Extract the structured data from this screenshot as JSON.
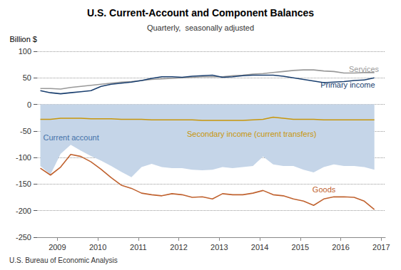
{
  "chart_data": {
    "type": "line",
    "title": "U.S. Current-Account and Component Balances",
    "subtitle": "Quarterly,  seasonally adjusted",
    "ylabel": "Billion $",
    "source": "U.S. Bureau of Economic Analysis",
    "xlim": [
      2008.5,
      2017.1
    ],
    "xticks": [
      2009,
      2010,
      2011,
      2012,
      2013,
      2014,
      2015,
      2016,
      2017
    ],
    "ylim": [
      -250,
      100
    ],
    "yticks": [
      -250,
      -200,
      -150,
      -100,
      -50,
      0,
      50,
      100
    ],
    "grid": true,
    "x": [
      2008.58,
      2008.83,
      2009.08,
      2009.33,
      2009.58,
      2009.83,
      2010.08,
      2010.33,
      2010.58,
      2010.83,
      2011.08,
      2011.33,
      2011.58,
      2011.83,
      2012.08,
      2012.33,
      2012.58,
      2012.83,
      2013.08,
      2013.33,
      2013.58,
      2013.83,
      2014.08,
      2014.33,
      2014.58,
      2014.83,
      2015.08,
      2015.33,
      2015.58,
      2015.83,
      2016.08,
      2016.33,
      2016.58,
      2016.83
    ],
    "series": [
      {
        "name": "Current account",
        "type": "area",
        "color": "#c5d5e8",
        "values": [
          -116,
          -132,
          -93,
          -76,
          -87,
          -97,
          -106,
          -116,
          -127,
          -137,
          -118,
          -112,
          -118,
          -120,
          -120,
          -123,
          -124,
          -123,
          -118,
          -120,
          -118,
          -116,
          -98,
          -113,
          -116,
          -116,
          -123,
          -128,
          -118,
          -113,
          -116,
          -116,
          -118,
          -123
        ]
      },
      {
        "name": "Services",
        "type": "line",
        "color": "#999999",
        "values": [
          30,
          30,
          29,
          32,
          34,
          36,
          38,
          40,
          42,
          43,
          45,
          47,
          48,
          49,
          50,
          51,
          52,
          52,
          52,
          54,
          55,
          57,
          58,
          60,
          62,
          64,
          65,
          65,
          63,
          62,
          59,
          59,
          60,
          60
        ]
      },
      {
        "name": "Primary income",
        "type": "line",
        "color": "#1a3f6f",
        "values": [
          26,
          22,
          20,
          22,
          24,
          26,
          34,
          38,
          40,
          42,
          45,
          49,
          52,
          52,
          51,
          53,
          54,
          55,
          51,
          52,
          54,
          55,
          55,
          55,
          53,
          50,
          47,
          44,
          41,
          42,
          43,
          45,
          46,
          50
        ]
      },
      {
        "name": "Secondary income (current transfers)",
        "type": "line",
        "color": "#c8960a",
        "values": [
          -28,
          -28,
          -26,
          -26,
          -26,
          -27,
          -27,
          -27,
          -28,
          -28,
          -28,
          -29,
          -29,
          -29,
          -29,
          -29,
          -30,
          -30,
          -30,
          -30,
          -30,
          -29,
          -28,
          -24,
          -26,
          -28,
          -28,
          -28,
          -29,
          -29,
          -29,
          -29,
          -29,
          -29
        ]
      },
      {
        "name": "Goods",
        "type": "line",
        "color": "#c0622f",
        "values": [
          -120,
          -133,
          -118,
          -94,
          -98,
          -108,
          -122,
          -138,
          -152,
          -158,
          -167,
          -170,
          -172,
          -168,
          -170,
          -175,
          -174,
          -178,
          -168,
          -170,
          -170,
          -167,
          -162,
          -170,
          -172,
          -178,
          -182,
          -190,
          -178,
          -174,
          -174,
          -175,
          -182,
          -198
        ]
      }
    ],
    "annotations": [
      {
        "text": "Services",
        "x": 2016.2,
        "y": 67,
        "color": "#999999"
      },
      {
        "text": "Primary income",
        "x": 2015.5,
        "y": 37,
        "color": "#1a3f6f"
      },
      {
        "text": "Current account",
        "x": 2008.65,
        "y": -62,
        "color": "#4472a8"
      },
      {
        "text": "Secondary income (current transfers)",
        "x": 2012.2,
        "y": -55,
        "color": "#c8960a"
      },
      {
        "text": "Goods",
        "x": 2015.3,
        "y": -160,
        "color": "#c0622f"
      }
    ]
  }
}
